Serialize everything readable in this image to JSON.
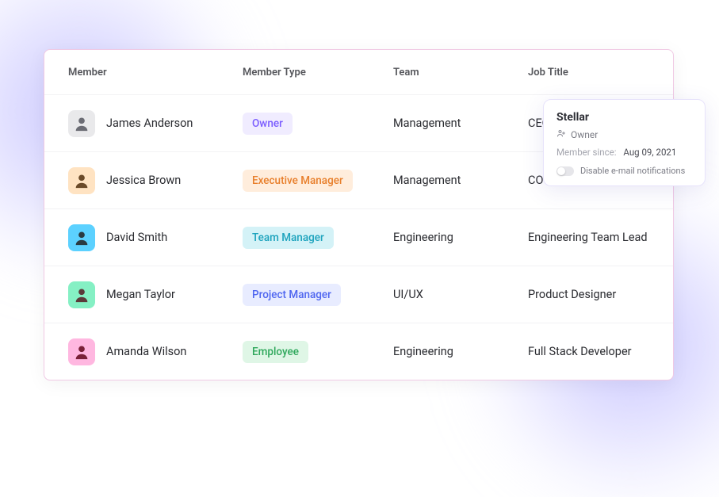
{
  "table": {
    "headers": {
      "member": "Member",
      "member_type": "Member Type",
      "team": "Team",
      "job_title": "Job Title"
    },
    "rows": [
      {
        "name": "James Anderson",
        "avatar_bg": "#e9e9eb",
        "avatar_fg": "#6b6c74",
        "type_label": "Owner",
        "type_bg": "#f0ecff",
        "type_fg": "#7a5cff",
        "team": "Management",
        "job_title": "CEO"
      },
      {
        "name": "Jessica Brown",
        "avatar_bg": "#ffe3c2",
        "avatar_fg": "#6b4a28",
        "type_label": "Executive Manager",
        "type_bg": "#ffeddc",
        "type_fg": "#e87f2b",
        "team": "Management",
        "job_title": "COO"
      },
      {
        "name": "David Smith",
        "avatar_bg": "#5cd1ff",
        "avatar_fg": "#2a3a42",
        "type_label": "Team Manager",
        "type_bg": "#d4f2f7",
        "type_fg": "#1da3bd",
        "team": "Engineering",
        "job_title": "Engineering Team Lead"
      },
      {
        "name": "Megan Taylor",
        "avatar_bg": "#85f0c4",
        "avatar_fg": "#5b3a3a",
        "type_label": "Project Manager",
        "type_bg": "#e8ecff",
        "type_fg": "#4f66f0",
        "team": "UI/UX",
        "job_title": "Product Designer"
      },
      {
        "name": "Amanda Wilson",
        "avatar_bg": "#ffb7e0",
        "avatar_fg": "#7a2038",
        "type_label": "Employee",
        "type_bg": "#dff6e6",
        "type_fg": "#2fa85c",
        "team": "Engineering",
        "job_title": "Full Stack Developer"
      }
    ]
  },
  "popover": {
    "title": "Stellar",
    "role": "Owner",
    "since_label": "Member since:",
    "since_date": "Aug 09, 2021",
    "toggle_label": "Disable e-mail notifications"
  }
}
